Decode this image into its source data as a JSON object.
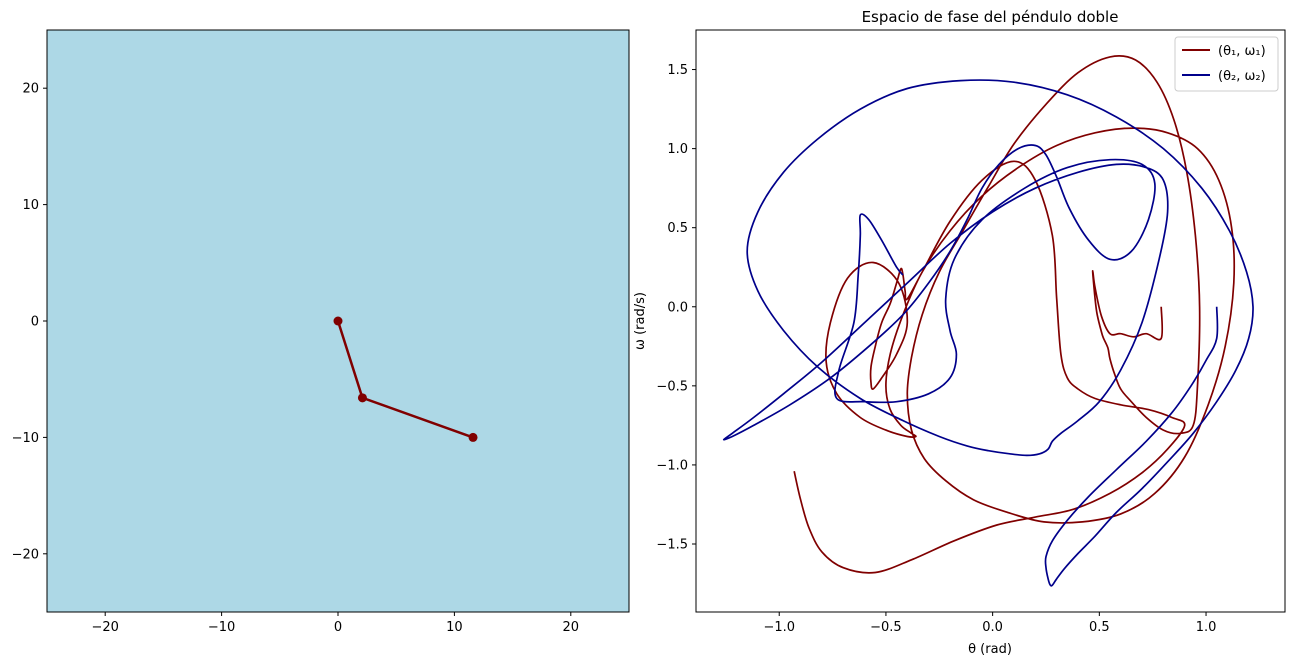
{
  "colors": {
    "pendulum_bg": "#add8e6",
    "pendulum_arm": "#800000",
    "series1": "#800000",
    "series2": "#00008b"
  },
  "chart_data": [
    {
      "type": "line",
      "title": "",
      "xlabel": "",
      "ylabel": "",
      "xlim": [
        -25,
        25
      ],
      "ylim": [
        -25,
        25
      ],
      "xticks": [
        -20,
        -10,
        0,
        10,
        20
      ],
      "yticks": [
        -20,
        -10,
        0,
        10,
        20
      ],
      "xtick_labels": [
        "−20",
        "−10",
        "0",
        "10",
        "20"
      ],
      "ytick_labels": [
        "−20",
        "−10",
        "0",
        "10",
        "20"
      ],
      "grid": false,
      "series": [
        {
          "x": [
            0,
            2.1,
            11.6
          ],
          "y": [
            0,
            -6.6,
            -10.0
          ]
        }
      ]
    },
    {
      "type": "line",
      "title": "Espacio de fase del péndulo doble",
      "xlabel": "θ (rad)",
      "ylabel": "ω (rad/s)",
      "xlim": [
        -1.39,
        1.37
      ],
      "ylim": [
        -1.93,
        1.75
      ],
      "xticks": [
        -1.0,
        -0.5,
        0.0,
        0.5,
        1.0
      ],
      "yticks": [
        -1.5,
        -1.0,
        -0.5,
        0.0,
        0.5,
        1.0,
        1.5
      ],
      "xtick_labels": [
        "−1.0",
        "−0.5",
        "0.0",
        "0.5",
        "1.0"
      ],
      "ytick_labels": [
        "−1.5",
        "−1.0",
        "−0.5",
        "0.0",
        "0.5",
        "1.0",
        "1.5"
      ],
      "grid": false,
      "legend": "top-right",
      "series": [
        {
          "name": "(θ₁, ω₁)",
          "x": [
            0.79,
            0.79,
            0.72,
            0.66,
            0.6,
            0.55,
            0.51,
            0.48,
            0.47,
            0.47,
            0.48,
            0.49,
            0.51,
            0.52,
            0.54,
            0.55,
            0.57,
            0.6,
            0.65,
            0.72,
            0.8,
            0.88,
            0.94,
            0.96,
            0.97,
            0.95,
            0.91,
            0.85,
            0.77,
            0.67,
            0.55,
            0.4,
            0.25,
            0.1,
            -0.02,
            -0.14,
            -0.25,
            -0.33,
            -0.38,
            -0.4,
            -0.38,
            -0.32,
            -0.22,
            -0.09,
            0.07,
            0.24,
            0.42,
            0.6,
            0.76,
            0.9,
            1.01,
            1.09,
            1.13,
            1.12,
            1.06,
            0.96,
            0.82,
            0.66,
            0.48,
            0.3,
            0.12,
            -0.05,
            -0.2,
            -0.33,
            -0.42,
            -0.48,
            -0.5,
            -0.48,
            -0.43,
            -0.38,
            -0.36,
            -0.4,
            -0.5,
            -0.62,
            -0.73,
            -0.78,
            -0.76,
            -0.68,
            -0.56,
            -0.44,
            -0.4,
            -0.45,
            -0.52,
            -0.56,
            -0.57,
            -0.57,
            -0.55,
            -0.52,
            -0.48,
            -0.45,
            -0.43,
            -0.42,
            -0.41,
            -0.4,
            -0.33,
            -0.2,
            -0.05,
            0.1,
            0.2,
            0.28,
            0.3,
            0.32,
            0.35,
            0.4,
            0.48,
            0.6,
            0.73,
            0.84,
            0.9,
            0.82,
            0.7,
            0.55,
            0.38,
            0.2,
            0.02,
            -0.18,
            -0.38,
            -0.55,
            -0.7,
            -0.8,
            -0.86,
            -0.9,
            -0.93
          ],
          "y": [
            0.0,
            -0.2,
            -0.17,
            -0.19,
            -0.17,
            -0.17,
            -0.06,
            0.12,
            0.22,
            0.2,
            0.05,
            -0.05,
            -0.16,
            -0.2,
            -0.26,
            -0.33,
            -0.42,
            -0.52,
            -0.6,
            -0.7,
            -0.78,
            -0.8,
            -0.75,
            -0.5,
            0.0,
            0.45,
            0.85,
            1.18,
            1.42,
            1.56,
            1.58,
            1.48,
            1.28,
            1.03,
            0.76,
            0.48,
            0.22,
            -0.05,
            -0.32,
            -0.55,
            -0.78,
            -0.96,
            -1.1,
            -1.22,
            -1.3,
            -1.36,
            -1.36,
            -1.31,
            -1.18,
            -0.95,
            -0.62,
            -0.25,
            0.15,
            0.5,
            0.8,
            1.0,
            1.1,
            1.13,
            1.1,
            1.02,
            0.88,
            0.7,
            0.48,
            0.22,
            -0.05,
            -0.3,
            -0.5,
            -0.65,
            -0.75,
            -0.8,
            -0.82,
            -0.82,
            -0.78,
            -0.7,
            -0.55,
            -0.35,
            -0.1,
            0.18,
            0.28,
            0.15,
            -0.1,
            -0.3,
            -0.45,
            -0.52,
            -0.48,
            -0.38,
            -0.25,
            -0.1,
            0.02,
            0.15,
            0.24,
            0.2,
            0.1,
            0.05,
            0.22,
            0.54,
            0.8,
            0.92,
            0.8,
            0.45,
            0.05,
            -0.3,
            -0.45,
            -0.52,
            -0.58,
            -0.62,
            -0.65,
            -0.7,
            -0.75,
            -0.9,
            -1.05,
            -1.18,
            -1.28,
            -1.33,
            -1.38,
            -1.48,
            -1.6,
            -1.68,
            -1.65,
            -1.55,
            -1.4,
            -1.22,
            -1.04
          ]
        },
        {
          "name": "(θ₂, ω₂)",
          "x": [
            1.05,
            1.05,
            1.0,
            0.93,
            0.84,
            0.72,
            0.58,
            0.45,
            0.35,
            0.28,
            0.25,
            0.25,
            0.26,
            0.27,
            0.28,
            0.3,
            0.34,
            0.4,
            0.48,
            0.58,
            0.7,
            0.82,
            0.94,
            1.05,
            1.14,
            1.2,
            1.22,
            1.19,
            1.11,
            0.98,
            0.8,
            0.58,
            0.35,
            0.1,
            -0.15,
            -0.4,
            -0.62,
            -0.82,
            -0.98,
            -1.1,
            -1.15,
            -1.1,
            -0.98,
            -0.82,
            -0.62,
            -0.42,
            -0.25,
            -0.12,
            -0.02,
            0.08,
            0.16,
            0.22,
            0.26,
            0.28,
            0.32,
            0.4,
            0.5,
            0.6,
            0.7,
            0.78,
            0.82,
            0.8,
            0.72,
            0.58,
            0.4,
            0.2,
            0.0,
            -0.2,
            -0.4,
            -0.6,
            -0.8,
            -0.98,
            -1.12,
            -1.22,
            -1.26,
            -1.22,
            -1.12,
            -0.95,
            -0.76,
            -0.58,
            -0.42,
            -0.3,
            -0.2,
            -0.12,
            -0.05,
            0.03,
            0.12,
            0.2,
            0.25,
            0.3,
            0.36,
            0.45,
            0.55,
            0.65,
            0.73,
            0.76,
            0.7,
            0.55,
            0.35,
            0.15,
            -0.05,
            -0.18,
            -0.22,
            -0.2,
            -0.17,
            -0.2,
            -0.3,
            -0.45,
            -0.6,
            -0.73,
            -0.72,
            -0.65,
            -0.63,
            -0.62,
            -0.62,
            -0.58,
            -0.52,
            -0.45,
            -0.42
          ],
          "y": [
            0.0,
            -0.2,
            -0.34,
            -0.5,
            -0.67,
            -0.85,
            -1.03,
            -1.2,
            -1.35,
            -1.48,
            -1.58,
            -1.65,
            -1.72,
            -1.76,
            -1.76,
            -1.72,
            -1.65,
            -1.56,
            -1.45,
            -1.3,
            -1.15,
            -0.98,
            -0.8,
            -0.6,
            -0.4,
            -0.2,
            0.0,
            0.22,
            0.48,
            0.75,
            1.0,
            1.2,
            1.34,
            1.42,
            1.43,
            1.38,
            1.25,
            1.06,
            0.85,
            0.6,
            0.35,
            0.1,
            -0.15,
            -0.38,
            -0.58,
            -0.72,
            -0.82,
            -0.88,
            -0.91,
            -0.93,
            -0.94,
            -0.93,
            -0.9,
            -0.85,
            -0.8,
            -0.72,
            -0.6,
            -0.4,
            -0.1,
            0.3,
            0.6,
            0.8,
            0.88,
            0.9,
            0.85,
            0.75,
            0.6,
            0.4,
            0.15,
            -0.1,
            -0.35,
            -0.55,
            -0.7,
            -0.8,
            -0.84,
            -0.82,
            -0.75,
            -0.62,
            -0.45,
            -0.25,
            -0.05,
            0.15,
            0.35,
            0.55,
            0.75,
            0.9,
            1.0,
            1.02,
            0.96,
            0.82,
            0.62,
            0.42,
            0.3,
            0.35,
            0.55,
            0.78,
            0.9,
            0.93,
            0.88,
            0.75,
            0.55,
            0.3,
            0.05,
            -0.15,
            -0.3,
            -0.45,
            -0.55,
            -0.6,
            -0.6,
            -0.58,
            -0.4,
            -0.1,
            0.2,
            0.45,
            0.58,
            0.55,
            0.42,
            0.25,
            0.2
          ]
        }
      ]
    }
  ]
}
